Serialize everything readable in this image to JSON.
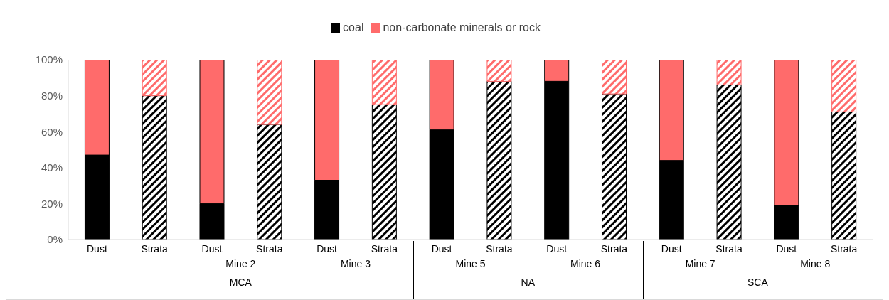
{
  "chart_data": {
    "type": "bar",
    "stacked": true,
    "categories": [
      "Dust",
      "Strata",
      "Dust",
      "Strata",
      "Dust",
      "Strata",
      "Dust",
      "Strata",
      "Dust",
      "Strata",
      "Dust",
      "Strata",
      "Dust",
      "Strata"
    ],
    "series": [
      {
        "name": "coal",
        "color": "#000000",
        "values": [
          47,
          80,
          20,
          64,
          33,
          75,
          61,
          88,
          88,
          81,
          44,
          86,
          19,
          71
        ]
      },
      {
        "name": "non-carbonate minerals or rock",
        "color": "#ff6b6b",
        "values": [
          53,
          20,
          80,
          36,
          67,
          25,
          39,
          12,
          12,
          19,
          56,
          14,
          81,
          29
        ]
      }
    ],
    "ylim": [
      0,
      100
    ],
    "yticks": [
      {
        "value": 0,
        "label": "0%"
      },
      {
        "value": 20,
        "label": "20%"
      },
      {
        "value": 40,
        "label": "40%"
      },
      {
        "value": 60,
        "label": "60%"
      },
      {
        "value": 80,
        "label": "80%"
      },
      {
        "value": 100,
        "label": "100%"
      }
    ],
    "grid": false,
    "legend": "top",
    "annotations": [
      "Mine 2",
      "Mine 3",
      "Mine 5",
      "Mine 6",
      "Mine 7",
      "Mine 8",
      "MCA",
      "NA",
      "SCA"
    ]
  }
}
